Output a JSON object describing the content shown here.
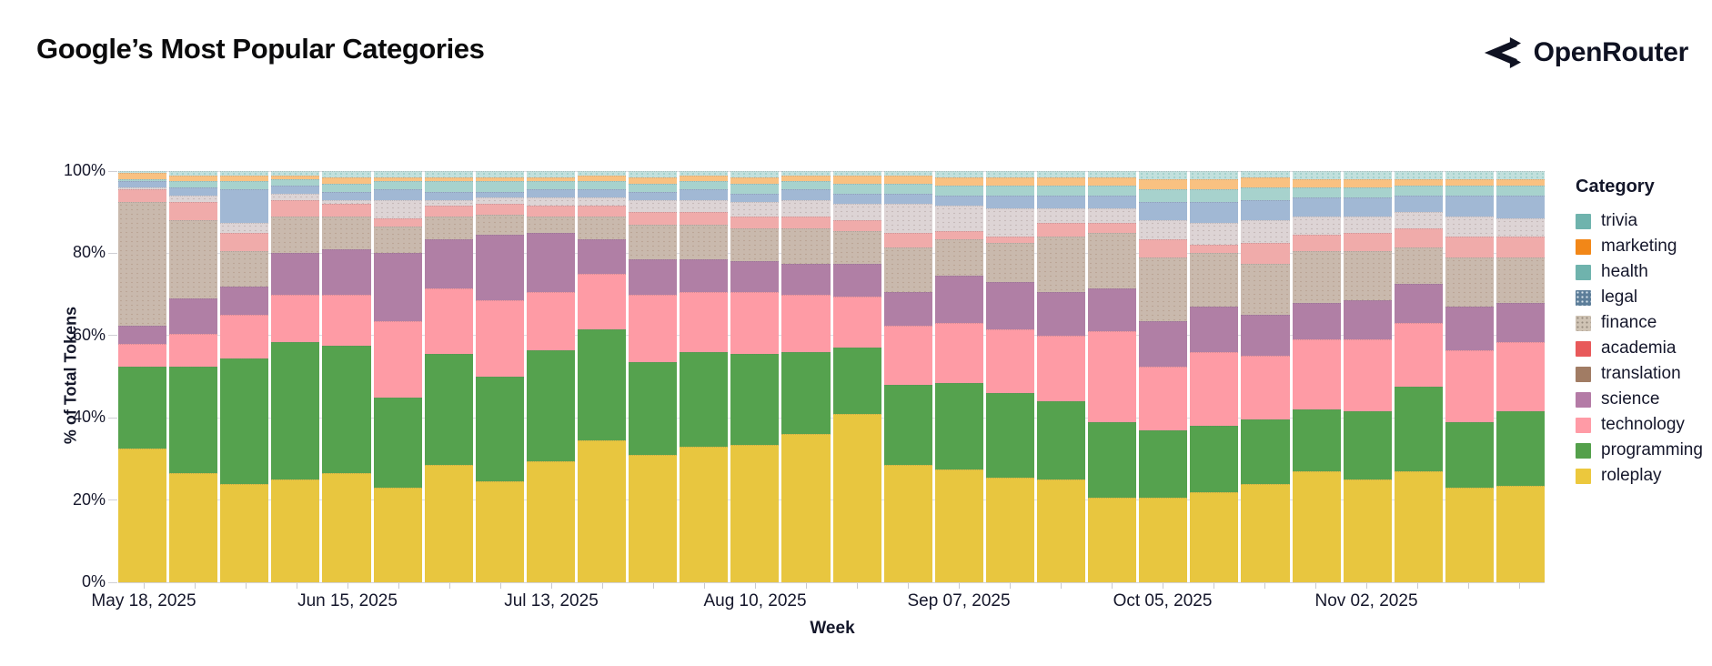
{
  "header": {
    "title": "Google’s Most Popular Categories",
    "brand": "OpenRouter"
  },
  "chart_data": {
    "type": "bar",
    "variant": "stacked-100-percent-weekly",
    "title": "Google’s Most Popular Categories",
    "xlabel": "Week",
    "ylabel": "% of Total Tokens",
    "ylim": [
      0,
      100
    ],
    "grid": true,
    "y_ticks": [
      "0%",
      "20%",
      "40%",
      "60%",
      "80%",
      "100%"
    ],
    "legend_title": "Category",
    "legend_position": "right",
    "categories": [
      {
        "name": "trivia",
        "legend_color": "#6fb3ad",
        "bar_color": "#c2e0dd",
        "swatch_pattern": "none",
        "seg_class": "seg-trivia"
      },
      {
        "name": "marketing",
        "legend_color": "#f28718",
        "bar_color": "#f9c181",
        "swatch_pattern": "none",
        "seg_class": ""
      },
      {
        "name": "health",
        "legend_color": "#6fb3ad",
        "bar_color": "#a7d2cd",
        "swatch_pattern": "none",
        "seg_class": ""
      },
      {
        "name": "legal",
        "legend_color": "#5c7d99",
        "bar_color": "#a1b8d4",
        "swatch_pattern": "dots-blue",
        "seg_class": "seg-legal"
      },
      {
        "name": "finance",
        "legend_color": "#cfc3b4",
        "bar_color": "#ddd4d5",
        "swatch_pattern": "dots-tan",
        "seg_class": "seg-finance"
      },
      {
        "name": "academia",
        "legend_color": "#e8595a",
        "bar_color": "#f0abaa",
        "swatch_pattern": "none",
        "seg_class": ""
      },
      {
        "name": "translation",
        "legend_color": "#a17c64",
        "bar_color": "#c9b9ad",
        "swatch_pattern": "none",
        "seg_class": "seg-translation"
      },
      {
        "name": "science",
        "legend_color": "#b47ba6",
        "bar_color": "#b07fa5",
        "swatch_pattern": "none",
        "seg_class": ""
      },
      {
        "name": "technology",
        "legend_color": "#ff9ba6",
        "bar_color": "#fe9ba5",
        "swatch_pattern": "none",
        "seg_class": ""
      },
      {
        "name": "programming",
        "legend_color": "#54a04b",
        "bar_color": "#55a24e",
        "swatch_pattern": "none",
        "seg_class": ""
      },
      {
        "name": "roleplay",
        "legend_color": "#ecc83d",
        "bar_color": "#e8c63f",
        "swatch_pattern": "none",
        "seg_class": ""
      }
    ],
    "weeks": [
      {
        "week": "May 18, 2025",
        "axis_label": "May 18, 2025",
        "values": {
          "roleplay": 32.5,
          "programming": 20.0,
          "technology": 5.5,
          "science": 4.5,
          "translation": 30.0,
          "academia": 3.0,
          "finance": 0.5,
          "legal": 1.5,
          "health": 0.5,
          "marketing": 1.5,
          "trivia": 0.5
        }
      },
      {
        "week": "May 25, 2025",
        "axis_label": "",
        "values": {
          "roleplay": 26.5,
          "programming": 26.0,
          "technology": 8.0,
          "science": 8.5,
          "translation": 19.0,
          "academia": 4.5,
          "finance": 1.5,
          "legal": 2.0,
          "health": 1.5,
          "marketing": 1.5,
          "trivia": 1.0
        }
      },
      {
        "week": "Jun 01, 2025",
        "axis_label": "",
        "values": {
          "roleplay": 24.0,
          "programming": 30.5,
          "technology": 10.5,
          "science": 7.0,
          "translation": 8.5,
          "academia": 4.5,
          "finance": 2.5,
          "legal": 8.0,
          "health": 2.0,
          "marketing": 1.5,
          "trivia": 1.0
        }
      },
      {
        "week": "Jun 08, 2025",
        "axis_label": "",
        "values": {
          "roleplay": 25.0,
          "programming": 33.5,
          "technology": 11.5,
          "science": 10.0,
          "translation": 9.0,
          "academia": 4.0,
          "finance": 1.5,
          "legal": 2.0,
          "health": 1.5,
          "marketing": 1.0,
          "trivia": 1.0
        }
      },
      {
        "week": "Jun 15, 2025",
        "axis_label": "Jun 15, 2025",
        "values": {
          "roleplay": 26.5,
          "programming": 31.0,
          "technology": 12.5,
          "science": 11.0,
          "translation": 8.0,
          "academia": 3.0,
          "finance": 1.0,
          "legal": 2.0,
          "health": 2.0,
          "marketing": 1.5,
          "trivia": 1.5
        }
      },
      {
        "week": "Jun 22, 2025",
        "axis_label": "",
        "values": {
          "roleplay": 23.0,
          "programming": 22.0,
          "technology": 18.5,
          "science": 16.5,
          "translation": 6.5,
          "academia": 2.0,
          "finance": 4.5,
          "legal": 2.5,
          "health": 2.0,
          "marketing": 1.0,
          "trivia": 1.5
        }
      },
      {
        "week": "Jun 29, 2025",
        "axis_label": "",
        "values": {
          "roleplay": 28.5,
          "programming": 27.0,
          "technology": 16.0,
          "science": 12.0,
          "translation": 5.5,
          "academia": 2.5,
          "finance": 1.5,
          "legal": 2.0,
          "health": 2.5,
          "marketing": 1.0,
          "trivia": 1.5
        }
      },
      {
        "week": "Jul 06, 2025",
        "axis_label": "",
        "values": {
          "roleplay": 24.5,
          "programming": 25.5,
          "technology": 18.5,
          "science": 16.0,
          "translation": 5.0,
          "academia": 2.5,
          "finance": 1.5,
          "legal": 1.5,
          "health": 2.5,
          "marketing": 1.0,
          "trivia": 1.5
        }
      },
      {
        "week": "Jul 13, 2025",
        "axis_label": "Jul 13, 2025",
        "values": {
          "roleplay": 29.5,
          "programming": 27.0,
          "technology": 14.0,
          "science": 14.5,
          "translation": 4.0,
          "academia": 2.5,
          "finance": 2.0,
          "legal": 2.0,
          "health": 2.0,
          "marketing": 1.0,
          "trivia": 1.5
        }
      },
      {
        "week": "Jul 20, 2025",
        "axis_label": "",
        "values": {
          "roleplay": 34.5,
          "programming": 27.0,
          "technology": 13.5,
          "science": 8.5,
          "translation": 5.5,
          "academia": 2.5,
          "finance": 2.0,
          "legal": 2.0,
          "health": 2.0,
          "marketing": 1.5,
          "trivia": 1.0
        }
      },
      {
        "week": "Jul 27, 2025",
        "axis_label": "",
        "values": {
          "roleplay": 31.0,
          "programming": 22.5,
          "technology": 16.5,
          "science": 8.5,
          "translation": 8.5,
          "academia": 3.0,
          "finance": 3.0,
          "legal": 2.0,
          "health": 2.0,
          "marketing": 1.5,
          "trivia": 1.5
        }
      },
      {
        "week": "Aug 03, 2025",
        "axis_label": "",
        "values": {
          "roleplay": 33.0,
          "programming": 23.0,
          "technology": 14.5,
          "science": 8.0,
          "translation": 8.5,
          "academia": 3.0,
          "finance": 3.0,
          "legal": 2.5,
          "health": 2.0,
          "marketing": 1.5,
          "trivia": 1.0
        }
      },
      {
        "week": "Aug 10, 2025",
        "axis_label": "Aug 10, 2025",
        "values": {
          "roleplay": 33.5,
          "programming": 22.0,
          "technology": 15.0,
          "science": 7.5,
          "translation": 8.0,
          "academia": 3.0,
          "finance": 3.5,
          "legal": 2.0,
          "health": 2.5,
          "marketing": 1.5,
          "trivia": 1.5
        }
      },
      {
        "week": "Aug 17, 2025",
        "axis_label": "",
        "values": {
          "roleplay": 36.0,
          "programming": 20.0,
          "technology": 14.0,
          "science": 7.5,
          "translation": 8.5,
          "academia": 3.0,
          "finance": 4.0,
          "legal": 2.5,
          "health": 2.0,
          "marketing": 1.5,
          "trivia": 1.0
        }
      },
      {
        "week": "Aug 24, 2025",
        "axis_label": "",
        "values": {
          "roleplay": 41.0,
          "programming": 16.0,
          "technology": 12.5,
          "science": 8.0,
          "translation": 8.0,
          "academia": 2.5,
          "finance": 4.0,
          "legal": 2.5,
          "health": 2.5,
          "marketing": 2.0,
          "trivia": 1.0
        }
      },
      {
        "week": "Aug 31, 2025",
        "axis_label": "",
        "values": {
          "roleplay": 28.5,
          "programming": 19.5,
          "technology": 14.5,
          "science": 8.0,
          "translation": 11.0,
          "academia": 3.5,
          "finance": 7.0,
          "legal": 2.5,
          "health": 2.5,
          "marketing": 2.0,
          "trivia": 1.0
        }
      },
      {
        "week": "Sep 07, 2025",
        "axis_label": "Sep 07, 2025",
        "values": {
          "roleplay": 27.5,
          "programming": 21.0,
          "technology": 14.5,
          "science": 11.5,
          "translation": 9.0,
          "academia": 2.0,
          "finance": 6.0,
          "legal": 2.5,
          "health": 2.5,
          "marketing": 2.0,
          "trivia": 1.5
        }
      },
      {
        "week": "Sep 14, 2025",
        "axis_label": "",
        "values": {
          "roleplay": 25.5,
          "programming": 20.5,
          "technology": 15.5,
          "science": 11.5,
          "translation": 9.5,
          "academia": 1.5,
          "finance": 7.0,
          "legal": 3.0,
          "health": 2.5,
          "marketing": 2.0,
          "trivia": 1.5
        }
      },
      {
        "week": "Sep 21, 2025",
        "axis_label": "",
        "values": {
          "roleplay": 25.0,
          "programming": 19.0,
          "technology": 16.0,
          "science": 10.5,
          "translation": 13.5,
          "academia": 3.5,
          "finance": 3.5,
          "legal": 3.0,
          "health": 2.5,
          "marketing": 2.0,
          "trivia": 1.5
        }
      },
      {
        "week": "Sep 28, 2025",
        "axis_label": "",
        "values": {
          "roleplay": 20.5,
          "programming": 18.5,
          "technology": 22.0,
          "science": 10.5,
          "translation": 13.5,
          "academia": 2.5,
          "finance": 3.5,
          "legal": 3.0,
          "health": 2.5,
          "marketing": 2.0,
          "trivia": 1.5
        }
      },
      {
        "week": "Oct 05, 2025",
        "axis_label": "Oct 05, 2025",
        "values": {
          "roleplay": 20.5,
          "programming": 16.5,
          "technology": 15.5,
          "science": 11.0,
          "translation": 15.5,
          "academia": 4.5,
          "finance": 4.5,
          "legal": 4.5,
          "health": 3.0,
          "marketing": 2.5,
          "trivia": 2.0
        }
      },
      {
        "week": "Oct 12, 2025",
        "axis_label": "",
        "values": {
          "roleplay": 22.0,
          "programming": 16.0,
          "technology": 18.0,
          "science": 11.0,
          "translation": 13.0,
          "academia": 2.0,
          "finance": 5.5,
          "legal": 5.0,
          "health": 3.0,
          "marketing": 2.5,
          "trivia": 2.0
        }
      },
      {
        "week": "Oct 19, 2025",
        "axis_label": "",
        "values": {
          "roleplay": 24.0,
          "programming": 15.5,
          "technology": 15.5,
          "science": 10.0,
          "translation": 12.5,
          "academia": 5.0,
          "finance": 5.5,
          "legal": 5.0,
          "health": 3.0,
          "marketing": 2.5,
          "trivia": 1.5
        }
      },
      {
        "week": "Oct 26, 2025",
        "axis_label": "",
        "values": {
          "roleplay": 27.0,
          "programming": 15.0,
          "technology": 17.0,
          "science": 9.0,
          "translation": 12.5,
          "academia": 4.0,
          "finance": 4.5,
          "legal": 4.5,
          "health": 2.5,
          "marketing": 2.0,
          "trivia": 2.0
        }
      },
      {
        "week": "Nov 02, 2025",
        "axis_label": "Nov 02, 2025",
        "values": {
          "roleplay": 25.0,
          "programming": 16.5,
          "technology": 17.5,
          "science": 9.5,
          "translation": 12.0,
          "academia": 4.5,
          "finance": 4.0,
          "legal": 4.5,
          "health": 2.5,
          "marketing": 2.0,
          "trivia": 2.0
        }
      },
      {
        "week": "Nov 09, 2025",
        "axis_label": "",
        "values": {
          "roleplay": 27.0,
          "programming": 20.5,
          "technology": 15.5,
          "science": 9.5,
          "translation": 9.0,
          "academia": 4.5,
          "finance": 4.0,
          "legal": 4.0,
          "health": 2.5,
          "marketing": 1.5,
          "trivia": 2.0
        }
      },
      {
        "week": "Nov 16, 2025",
        "axis_label": "",
        "values": {
          "roleplay": 23.0,
          "programming": 16.0,
          "technology": 17.5,
          "science": 10.5,
          "translation": 12.0,
          "academia": 5.0,
          "finance": 5.0,
          "legal": 5.0,
          "health": 2.5,
          "marketing": 1.5,
          "trivia": 2.0
        }
      },
      {
        "week": "Nov 23, 2025",
        "axis_label": "",
        "values": {
          "roleplay": 23.5,
          "programming": 18.0,
          "technology": 17.0,
          "science": 9.5,
          "translation": 11.0,
          "academia": 5.0,
          "finance": 4.5,
          "legal": 5.5,
          "health": 2.5,
          "marketing": 1.5,
          "trivia": 2.0
        }
      }
    ]
  }
}
